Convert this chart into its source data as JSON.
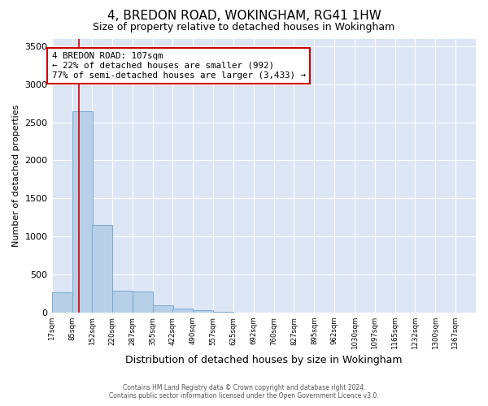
{
  "title": "4, BREDON ROAD, WOKINGHAM, RG41 1HW",
  "subtitle": "Size of property relative to detached houses in Wokingham",
  "xlabel": "Distribution of detached houses by size in Wokingham",
  "ylabel": "Number of detached properties",
  "bar_color": "#b8cfe8",
  "bar_edge_color": "#7aaad0",
  "background_color": "#dce6f5",
  "grid_color": "#ffffff",
  "bin_edges": [
    17,
    85,
    152,
    220,
    287,
    355,
    422,
    490,
    557,
    625,
    692,
    760,
    827,
    895,
    962,
    1030,
    1097,
    1165,
    1232,
    1300,
    1367
  ],
  "bar_heights": [
    270,
    2650,
    1150,
    285,
    280,
    90,
    50,
    30,
    5,
    3,
    2,
    1,
    0,
    0,
    0,
    0,
    0,
    0,
    0,
    0
  ],
  "ylim": [
    0,
    3600
  ],
  "yticks": [
    0,
    500,
    1000,
    1500,
    2000,
    2500,
    3000,
    3500
  ],
  "vline_x": 107,
  "vline_color": "#cc0000",
  "annotation_text": "4 BREDON ROAD: 107sqm\n← 22% of detached houses are smaller (992)\n77% of semi-detached houses are larger (3,433) →",
  "annotation_box_color": "#cc0000",
  "footer_line1": "Contains HM Land Registry data © Crown copyright and database right 2024.",
  "footer_line2": "Contains public sector information licensed under the Open Government Licence v3.0."
}
